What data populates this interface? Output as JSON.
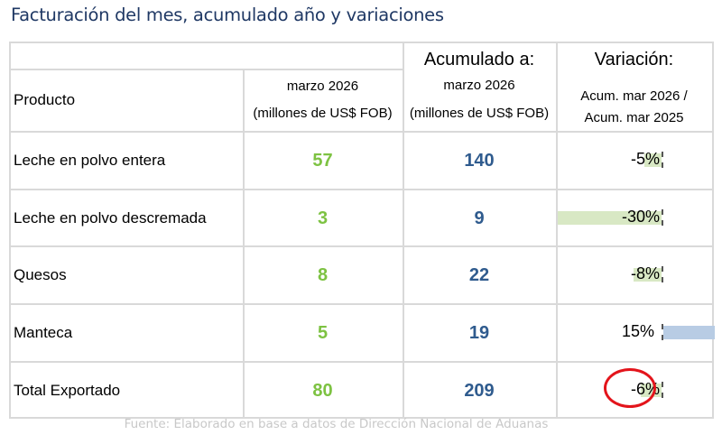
{
  "title": "Facturación del mes, acumulado año y variaciones",
  "table": {
    "header": {
      "product_label": "Producto",
      "month_col": {
        "line1": "marzo 2026",
        "line2": "(millones de US$ FOB)"
      },
      "accum_col": {
        "title": "Acumulado a:",
        "line1": "marzo 2026",
        "line2": "(millones de US$ FOB)"
      },
      "var_col": {
        "title": "Variación:",
        "line1": "Acum. mar 2026 /",
        "line2": "Acum. mar 2025"
      }
    },
    "rows": [
      {
        "product": "Leche en polvo entera",
        "month": "57",
        "accum": "140",
        "variation": "-5%",
        "variation_value": -5
      },
      {
        "product": "Leche en polvo descremada",
        "month": "3",
        "accum": "9",
        "variation": "-30%",
        "variation_value": -30
      },
      {
        "product": "Quesos",
        "month": "8",
        "accum": "22",
        "variation": "-8%",
        "variation_value": -8
      },
      {
        "product": "Manteca",
        "month": "5",
        "accum": "19",
        "variation": "15%",
        "variation_value": 15
      },
      {
        "product": "Total Exportado",
        "month": "80",
        "accum": "209",
        "variation": "-6%",
        "variation_value": -6,
        "highlighted": true
      }
    ]
  },
  "colors": {
    "title": "#1f3864",
    "month_values": "#7dc242",
    "accum_values": "#2f5b8e",
    "negative_bar": "#d8e8c4",
    "positive_bar": "#b8cce4",
    "highlight_circle": "#e3141b"
  },
  "source": "Fuente: Elaborado en base a datos de Dirección Nacional de Aduanas"
}
